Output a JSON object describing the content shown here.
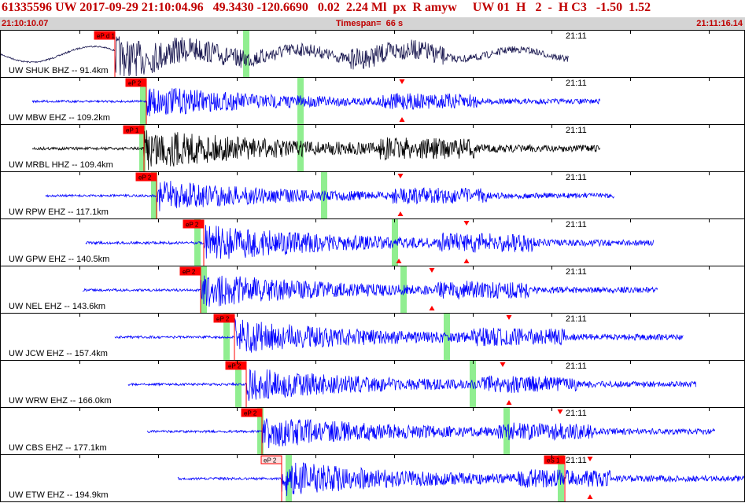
{
  "header": {
    "title": "61335596 UW 2017-09-29 21:10:04.96   49.3430 -120.6690   0.02  2.24 Ml  px  R amyw     UW 01  H   2  -  H C3   -1.50  1.52",
    "start_time": "21:10:10.07",
    "timespan": "Timespan=  66 s",
    "end_time": "21:11:16.14"
  },
  "colors": {
    "title_red": "#c00000",
    "wave_blue": "#0000ff",
    "wave_navy": "#1a1850",
    "wave_black": "#000000",
    "pick_red": "#ff0000",
    "pick_green": "#90ee90",
    "subbar_gray": "#d4d4d4"
  },
  "traces": [
    {
      "label": "UW SHUK BHZ -- 91.4km",
      "time": "21:11",
      "color": "#1a1850",
      "pick": {
        "label": "eP d 1",
        "filled": true
      },
      "amp": 0.9,
      "start": 0,
      "onset": 145,
      "end": 722,
      "green": [
        312
      ],
      "tri_down": [],
      "tri_up": []
    },
    {
      "label": "UW MBW EHZ -- 109.2km",
      "time": "21:11",
      "color": "#0000ff",
      "pick": {
        "label": "eP 2",
        "filled": true
      },
      "amp": 0.7,
      "start": 40,
      "onset": 185,
      "end": 762,
      "green": [
        181,
        381
      ],
      "tri_down": [
        510
      ],
      "tri_up": [
        510
      ]
    },
    {
      "label": "UW MRBL HHZ -- 109.4km",
      "time": "21:11",
      "color": "#000000",
      "pick": {
        "label": "eP 1",
        "filled": true
      },
      "amp": 0.95,
      "start": 40,
      "onset": 182,
      "end": 762,
      "green": [
        180,
        381
      ],
      "tri_down": [],
      "tri_up": []
    },
    {
      "label": "UW RPW EHZ -- 117.1km",
      "time": "21:11",
      "color": "#0000ff",
      "pick": {
        "label": "eP 2",
        "filled": true
      },
      "amp": 0.7,
      "start": 57,
      "onset": 198,
      "end": 780,
      "green": [
        195,
        411
      ],
      "tri_down": [
        508
      ],
      "tri_up": [
        508
      ]
    },
    {
      "label": "UW GPW EHZ -- 140.5km",
      "time": "21:11",
      "color": "#0000ff",
      "pick": {
        "label": "eP 2",
        "filled": true
      },
      "amp": 0.85,
      "start": 108,
      "onset": 258,
      "end": 830,
      "green": [
        250,
        501
      ],
      "tri_down": [
        592
      ],
      "tri_up": [
        506,
        592
      ]
    },
    {
      "label": "UW NEL EHZ -- 143.6km",
      "time": "21:11",
      "color": "#0000ff",
      "pick": {
        "label": "eP 2",
        "filled": true
      },
      "amp": 0.8,
      "start": 104,
      "onset": 254,
      "end": 835,
      "green": [
        258,
        512
      ],
      "tri_down": [
        548
      ],
      "tri_up": [
        548
      ]
    },
    {
      "label": "UW JCW EHZ -- 157.4km",
      "time": "21:11",
      "color": "#0000ff",
      "pick": {
        "label": "eP 2",
        "filled": true
      },
      "amp": 0.8,
      "start": 145,
      "onset": 297,
      "end": 868,
      "green": [
        287,
        567
      ],
      "tri_down": [
        646
      ],
      "tri_up": []
    },
    {
      "label": "UW WRW EHZ -- 166.0km",
      "time": "21:11",
      "color": "#0000ff",
      "pick": {
        "label": "eP 2",
        "filled": true
      },
      "amp": 0.75,
      "start": 162,
      "onset": 312,
      "end": 884,
      "green": [
        302,
        600
      ],
      "tri_down": [
        638
      ],
      "tri_up": [
        646
      ]
    },
    {
      "label": "UW CBS EHZ -- 177.1km",
      "time": "21:11",
      "color": "#0000ff",
      "pick": {
        "label": "eP 2",
        "filled": true
      },
      "amp": 0.75,
      "start": 186,
      "onset": 332,
      "end": 908,
      "green": [
        330,
        643
      ],
      "tri_down": [
        711
      ],
      "tri_up": []
    },
    {
      "label": "UW ETW EHZ -- 194.9km",
      "time": "21:11",
      "color": "#0000ff",
      "pick": {
        "label": "eP 2",
        "filled": false
      },
      "pick2": {
        "label": "eS 1",
        "filled": true
      },
      "amp": 0.8,
      "start": 225,
      "onset": 357,
      "end": 947,
      "green": [
        366,
        712
      ],
      "tri_down": [
        749
      ],
      "tri_up": [
        749
      ]
    }
  ]
}
